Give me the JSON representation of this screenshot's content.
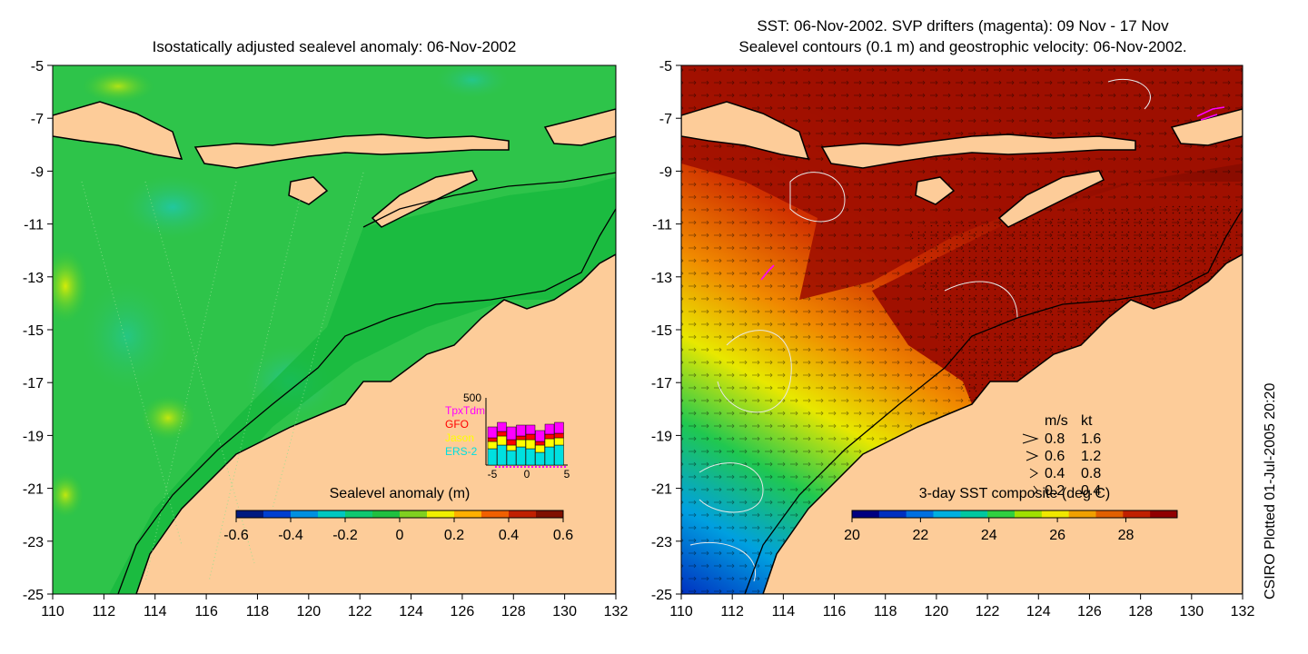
{
  "left_panel": {
    "title": "Isostatically adjusted sealevel anomaly: 06-Nov-2002",
    "colorbar": {
      "title": "Sealevel anomaly (m)",
      "ticks": [
        "-0.6",
        "-0.4",
        "-0.2",
        "0",
        "0.2",
        "0.4",
        "0.6"
      ],
      "range": [
        -0.6,
        0.6
      ],
      "colors": [
        "#001a80",
        "#0040d0",
        "#0090e0",
        "#00c8c0",
        "#10c870",
        "#20c040",
        "#80d020",
        "#f0f000",
        "#ffb000",
        "#f06000",
        "#c02000",
        "#801000"
      ]
    },
    "inset": {
      "ytick_top": "500",
      "legend": [
        {
          "label": "TpxTdm",
          "color": "#ff00ff"
        },
        {
          "label": "GFO",
          "color": "#ff0000"
        },
        {
          "label": "Jason",
          "color": "#ffff00"
        },
        {
          "label": "ERS-2",
          "color": "#00e0e0"
        }
      ],
      "xticks": [
        "-5",
        "0",
        "5"
      ]
    }
  },
  "right_panel": {
    "title_line1": "SST: 06-Nov-2002. SVP drifters (magenta): 09 Nov - 17 Nov",
    "title_line2": "Sealevel contours (0.1 m) and geostrophic velocity: 06-Nov-2002.",
    "colorbar": {
      "title": "3-day SST composite (deg C)",
      "ticks": [
        "20",
        "22",
        "24",
        "26",
        "28"
      ],
      "range": [
        20,
        29.5
      ],
      "colors": [
        "#000080",
        "#0030c0",
        "#0070e0",
        "#00b0e0",
        "#00c8a0",
        "#30d040",
        "#a0e000",
        "#f0e800",
        "#f0a000",
        "#e06000",
        "#c02000",
        "#900000"
      ]
    },
    "velocity_key": {
      "header": [
        "m/s",
        "kt"
      ],
      "rows": [
        [
          "0.8",
          "1.6"
        ],
        [
          "0.6",
          "1.2"
        ],
        [
          "0.4",
          "0.8"
        ],
        [
          "0.2",
          "0.4"
        ]
      ]
    }
  },
  "axes": {
    "x_ticks": [
      "110",
      "112",
      "114",
      "116",
      "118",
      "120",
      "122",
      "124",
      "126",
      "128",
      "130",
      "132"
    ],
    "y_ticks": [
      "-5",
      "-7",
      "-9",
      "-11",
      "-13",
      "-15",
      "-17",
      "-19",
      "-21",
      "-23",
      "-25"
    ],
    "lon_range": [
      110,
      132
    ],
    "lat_range": [
      -25,
      -5
    ]
  },
  "colors": {
    "land": "#fdcc99",
    "ocean_left": "#00b83a",
    "ocean_right_warm": "#a01000",
    "coastline": "#000000"
  },
  "credit": "CSIRO Plotted 01-Jul-2005 20:20"
}
